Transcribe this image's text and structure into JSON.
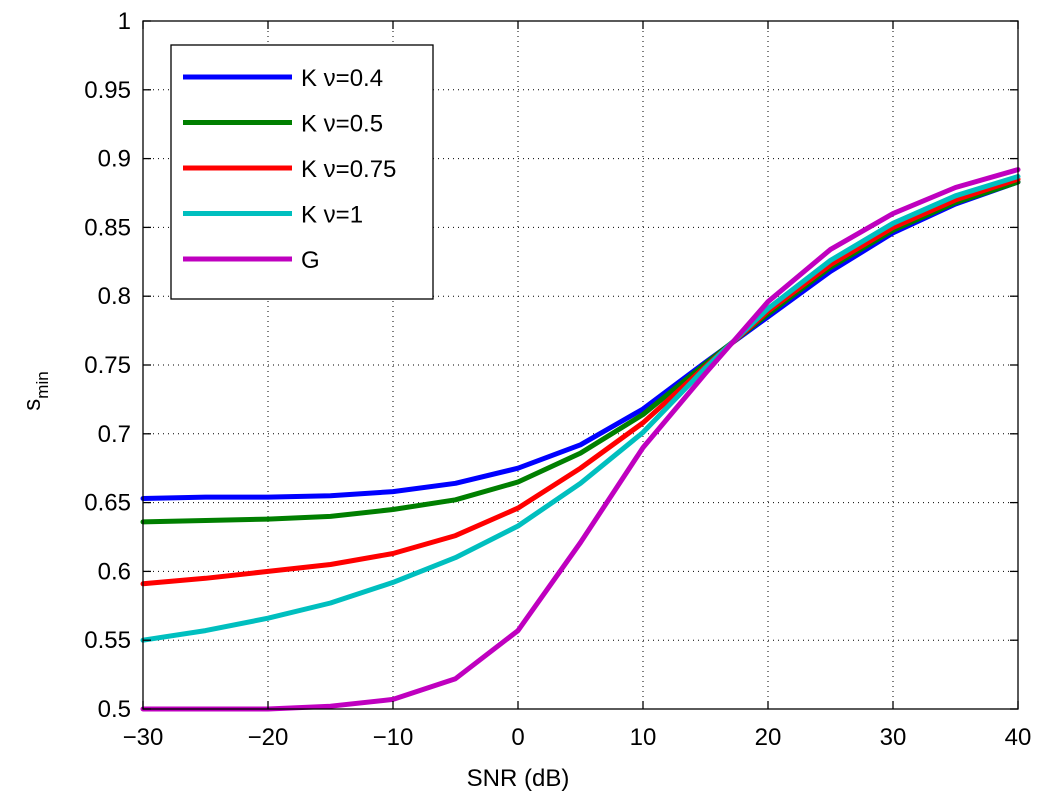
{
  "chart_data": {
    "type": "line",
    "title": "",
    "xlabel": "SNR (dB)",
    "ylabel": {
      "base": "s",
      "subscript": "min"
    },
    "xlim": [
      -30,
      40
    ],
    "ylim": [
      0.5,
      1
    ],
    "xticks": [
      -30,
      -20,
      -10,
      0,
      10,
      20,
      30,
      40
    ],
    "xtick_labels": [
      "−30",
      "−20",
      "−10",
      "0",
      "10",
      "20",
      "30",
      "40"
    ],
    "yticks": [
      0.5,
      0.55,
      0.6,
      0.65,
      0.7,
      0.75,
      0.8,
      0.85,
      0.9,
      0.95,
      1
    ],
    "ytick_labels": [
      "0.5",
      "0.55",
      "0.6",
      "0.65",
      "0.7",
      "0.75",
      "0.8",
      "0.85",
      "0.9",
      "0.95",
      "1"
    ],
    "grid": true,
    "legend_position": "top-left",
    "x": [
      -30,
      -25,
      -20,
      -15,
      -10,
      -5,
      0,
      5,
      10,
      15,
      20,
      25,
      30,
      35,
      40
    ],
    "series": [
      {
        "name": "K ν=0.4",
        "color": "#0000ff",
        "values": [
          0.653,
          0.654,
          0.654,
          0.655,
          0.658,
          0.664,
          0.675,
          0.692,
          0.718,
          0.752,
          0.785,
          0.818,
          0.846,
          0.867,
          0.883
        ]
      },
      {
        "name": "K ν=0.5",
        "color": "#007f00",
        "values": [
          0.636,
          0.637,
          0.638,
          0.64,
          0.645,
          0.652,
          0.665,
          0.686,
          0.714,
          0.751,
          0.787,
          0.821,
          0.848,
          0.868,
          0.883
        ]
      },
      {
        "name": "K ν=0.75",
        "color": "#ff0000",
        "values": [
          0.591,
          0.595,
          0.6,
          0.605,
          0.613,
          0.626,
          0.646,
          0.675,
          0.708,
          0.749,
          0.789,
          0.823,
          0.85,
          0.87,
          0.885
        ]
      },
      {
        "name": "K ν=1",
        "color": "#00bfbf",
        "values": [
          0.55,
          0.557,
          0.566,
          0.577,
          0.592,
          0.61,
          0.633,
          0.664,
          0.701,
          0.748,
          0.791,
          0.826,
          0.853,
          0.873,
          0.887
        ]
      },
      {
        "name": "G",
        "color": "#bf00bf",
        "values": [
          0.5,
          0.5,
          0.5,
          0.502,
          0.507,
          0.522,
          0.557,
          0.621,
          0.69,
          0.744,
          0.796,
          0.834,
          0.86,
          0.879,
          0.892
        ]
      }
    ]
  }
}
